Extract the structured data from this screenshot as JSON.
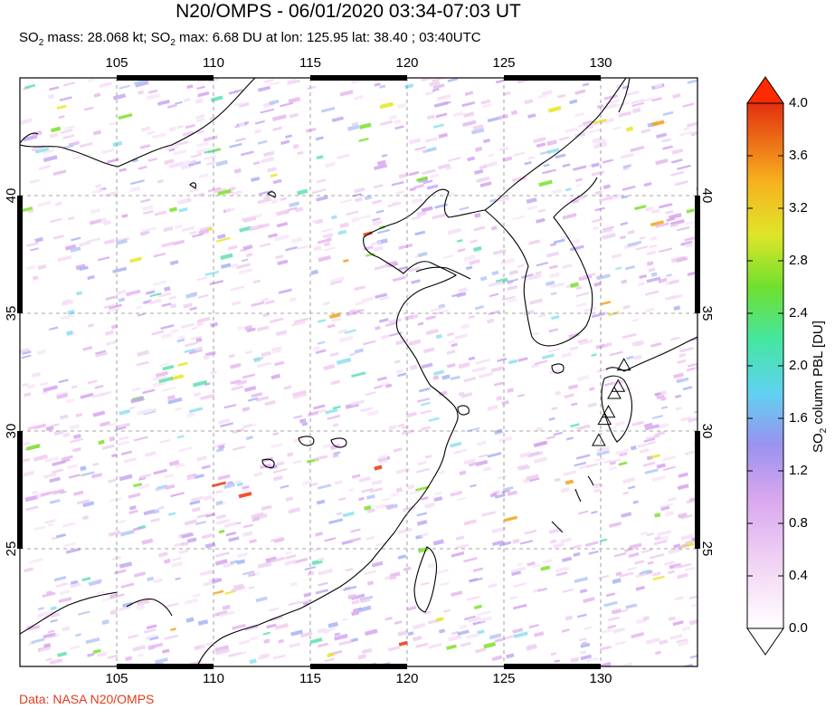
{
  "header": {
    "title": "N20/OMPS - 06/01/2020 03:34-07:03 UT",
    "subtitle_parts": [
      "SO",
      "2",
      " mass: 28.068 kt; SO",
      "2",
      " max: 6.68 DU at lon: 125.95 lat: 38.40 ; 03:40UTC"
    ]
  },
  "map": {
    "lon_ticks": [
      "105",
      "110",
      "115",
      "120",
      "125",
      "130"
    ],
    "lat_ticks": [
      "40",
      "35",
      "30",
      "25"
    ],
    "lon_range": [
      100,
      135
    ],
    "lat_range": [
      20,
      45
    ],
    "grid": "dashed",
    "volcano_markers": [
      {
        "lon": 131.2,
        "lat": 32.8
      },
      {
        "lon": 130.9,
        "lat": 31.9
      },
      {
        "lon": 130.7,
        "lat": 31.6
      },
      {
        "lon": 130.4,
        "lat": 30.8
      },
      {
        "lon": 130.2,
        "lat": 30.5
      },
      {
        "lon": 129.9,
        "lat": 29.6
      }
    ]
  },
  "colorbar": {
    "title_parts": [
      "SO",
      "2",
      " column PBL [DU]"
    ],
    "tick_labels": [
      "4.0",
      "3.6",
      "3.2",
      "2.8",
      "2.4",
      "2.0",
      "1.6",
      "1.2",
      "0.8",
      "0.4",
      "0.0"
    ],
    "colors": [
      "#ffffff",
      "#f3d9f3",
      "#d9a6f0",
      "#8e8ef2",
      "#55d8f0",
      "#4be89a",
      "#7ee02a",
      "#e6e627",
      "#f5a21a",
      "#e83a10"
    ],
    "extend_max_color": "#ff2a00",
    "extend_min_color": "#ffffff"
  },
  "footer": {
    "credit": "Data: NASA N20/OMPS"
  }
}
